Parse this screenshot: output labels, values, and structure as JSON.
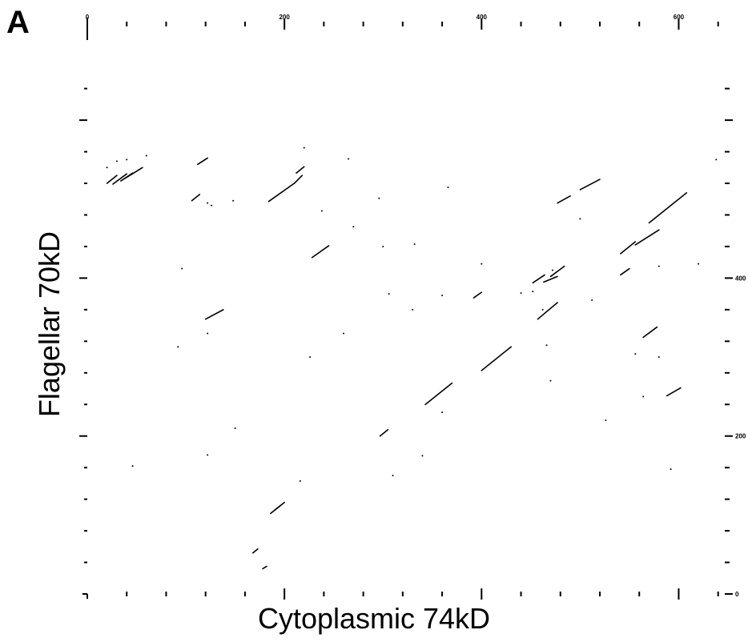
{
  "panel_label": "A",
  "chart_data": {
    "type": "scatter",
    "title": "",
    "xlabel": "Cytoplasmic 74kD",
    "ylabel": "Flagellar 70kD",
    "xlim": [
      0,
      660
    ],
    "ylim": [
      0,
      660
    ],
    "x_tick_labels": [
      "0",
      "200",
      "400",
      "600"
    ],
    "y_tick_labels": [
      "0",
      "200",
      "400"
    ],
    "grid": false,
    "series": [
      {
        "marker": "diagonal-dash",
        "segments": [
          {
            "x": [
              20,
              30
            ],
            "y": [
              520,
              530
            ]
          },
          {
            "x": [
              26,
              40
            ],
            "y": [
              519,
              532
            ]
          },
          {
            "x": [
              34,
              46
            ],
            "y": [
              523,
              533
            ]
          },
          {
            "x": [
              38,
              56
            ],
            "y": [
              526,
              540
            ]
          },
          {
            "x": [
              112,
              122
            ],
            "y": [
              544,
              552
            ]
          },
          {
            "x": [
              106,
              114
            ],
            "y": [
              498,
              506
            ]
          },
          {
            "x": [
              184,
              210
            ],
            "y": [
              497,
              520
            ]
          },
          {
            "x": [
              210,
              218
            ],
            "y": [
              520,
              530
            ]
          },
          {
            "x": [
              212,
              220
            ],
            "y": [
              533,
              541
            ]
          },
          {
            "x": [
              452,
              464
            ],
            "y": [
              394,
              404
            ]
          },
          {
            "x": [
              463,
              477
            ],
            "y": [
              395,
              402
            ]
          },
          {
            "x": [
              470,
              484
            ],
            "y": [
              402,
              415
            ]
          },
          {
            "x": [
              477,
              490
            ],
            "y": [
              495,
              504
            ]
          },
          {
            "x": [
              500,
              520
            ],
            "y": [
              512,
              525
            ]
          },
          {
            "x": [
              570,
              608
            ],
            "y": [
              470,
              508
            ]
          },
          {
            "x": [
              541,
              556
            ],
            "y": [
              431,
              446
            ]
          },
          {
            "x": [
              556,
              580
            ],
            "y": [
              442,
              461
            ]
          },
          {
            "x": [
              228,
              245
            ],
            "y": [
              426,
              441
            ]
          },
          {
            "x": [
              541,
              550
            ],
            "y": [
              404,
              412
            ]
          },
          {
            "x": [
              392,
              400
            ],
            "y": [
              375,
              382
            ]
          },
          {
            "x": [
              457,
              477
            ],
            "y": [
              348,
              369
            ]
          },
          {
            "x": [
              120,
              138
            ],
            "y": [
              348,
              360
            ]
          },
          {
            "x": [
              564,
              578
            ],
            "y": [
              325,
              338
            ]
          },
          {
            "x": [
              400,
              430
            ],
            "y": [
              283,
              313
            ]
          },
          {
            "x": [
              343,
              370
            ],
            "y": [
              240,
              267
            ]
          },
          {
            "x": [
              297,
              305
            ],
            "y": [
              200,
              208
            ]
          },
          {
            "x": [
              588,
              602
            ],
            "y": [
              251,
              261
            ]
          },
          {
            "x": [
              186,
              196
            ],
            "y": [
              102,
              112
            ]
          },
          {
            "x": [
              190,
              200
            ],
            "y": [
              106,
              116
            ]
          },
          {
            "x": [
              168,
              173
            ],
            "y": [
              52,
              57
            ]
          },
          {
            "x": [
              178,
              182
            ],
            "y": [
              32,
              35
            ]
          }
        ]
      },
      {
        "marker": "dot",
        "x": [
          30,
          40,
          60,
          20,
          122,
          126,
          148,
          296,
          306,
          332,
          400,
          366,
          440,
          452,
          500,
          472,
          265,
          220,
          96,
          92,
          46,
          150,
          260,
          360,
          122,
          340,
          526,
          592,
          580,
          300,
          238,
          270,
          564,
          556,
          620,
          638,
          216,
          226,
          360,
          310,
          470,
          330,
          122,
          466,
          512,
          462,
          580
        ],
        "y": [
          548,
          550,
          555,
          540,
          495,
          492,
          498,
          501,
          380,
          443,
          418,
          515,
          381,
          383,
          475,
          410,
          551,
          565,
          412,
          313,
          162,
          210,
          330,
          378,
          176,
          175,
          220,
          158,
          300,
          440,
          485,
          465,
          250,
          304,
          418,
          550,
          143,
          300,
          230,
          150,
          270,
          360,
          330,
          315,
          372,
          360,
          415
        ]
      }
    ]
  }
}
